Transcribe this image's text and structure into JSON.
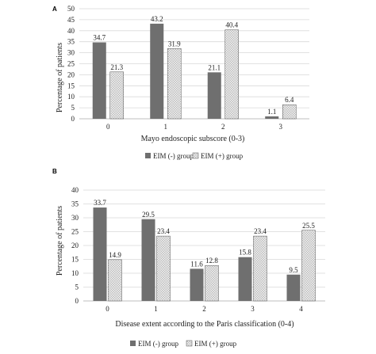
{
  "colors": {
    "eim_neg": "#6f6f6f",
    "eim_pos_pattern": "checkered-light-gray",
    "grid": "#d9d9d9",
    "axis": "#bfbfbf"
  },
  "chart_data": [
    {
      "panel": "A",
      "type": "bar",
      "categories": [
        "0",
        "1",
        "2",
        "3"
      ],
      "series": [
        {
          "name": "EIM (-) group",
          "values": [
            34.7,
            43.2,
            21.1,
            1.1
          ],
          "labels": [
            "34.7",
            "43.2",
            "21.1",
            "1.1"
          ]
        },
        {
          "name": "EIM (+) group",
          "values": [
            21.3,
            31.9,
            40.4,
            6.4
          ],
          "labels": [
            "21.3",
            "31.9",
            "40.4",
            "6.4"
          ]
        }
      ],
      "xlabel": "Mayo endoscopic subscore (0-3)",
      "ylabel": "Percentage of patients",
      "ylim": [
        0,
        50
      ],
      "yticks": [
        "0",
        "5",
        "10",
        "15",
        "20",
        "25",
        "30",
        "35",
        "40",
        "45",
        "50"
      ],
      "grid": true,
      "legend": "bottom"
    },
    {
      "panel": "B",
      "type": "bar",
      "categories": [
        "0",
        "1",
        "2",
        "3",
        "4"
      ],
      "series": [
        {
          "name": "EIM (-) group",
          "values": [
            33.7,
            29.5,
            11.6,
            15.8,
            9.5
          ],
          "labels": [
            "33.7",
            "29.5",
            "11.6",
            "15.8",
            "9.5"
          ]
        },
        {
          "name": "EIM (+) group",
          "values": [
            14.9,
            23.4,
            12.8,
            23.4,
            25.5
          ],
          "labels": [
            "14.9",
            "23.4",
            "12.8",
            "23.4",
            "25.5"
          ]
        }
      ],
      "xlabel": "Disease extent according to the Paris classification (0-4)",
      "ylabel": "Percentage of patients",
      "ylim": [
        0,
        40
      ],
      "yticks": [
        "0",
        "5",
        "10",
        "15",
        "20",
        "25",
        "30",
        "35",
        "40"
      ],
      "grid": true,
      "legend": "bottom"
    }
  ]
}
